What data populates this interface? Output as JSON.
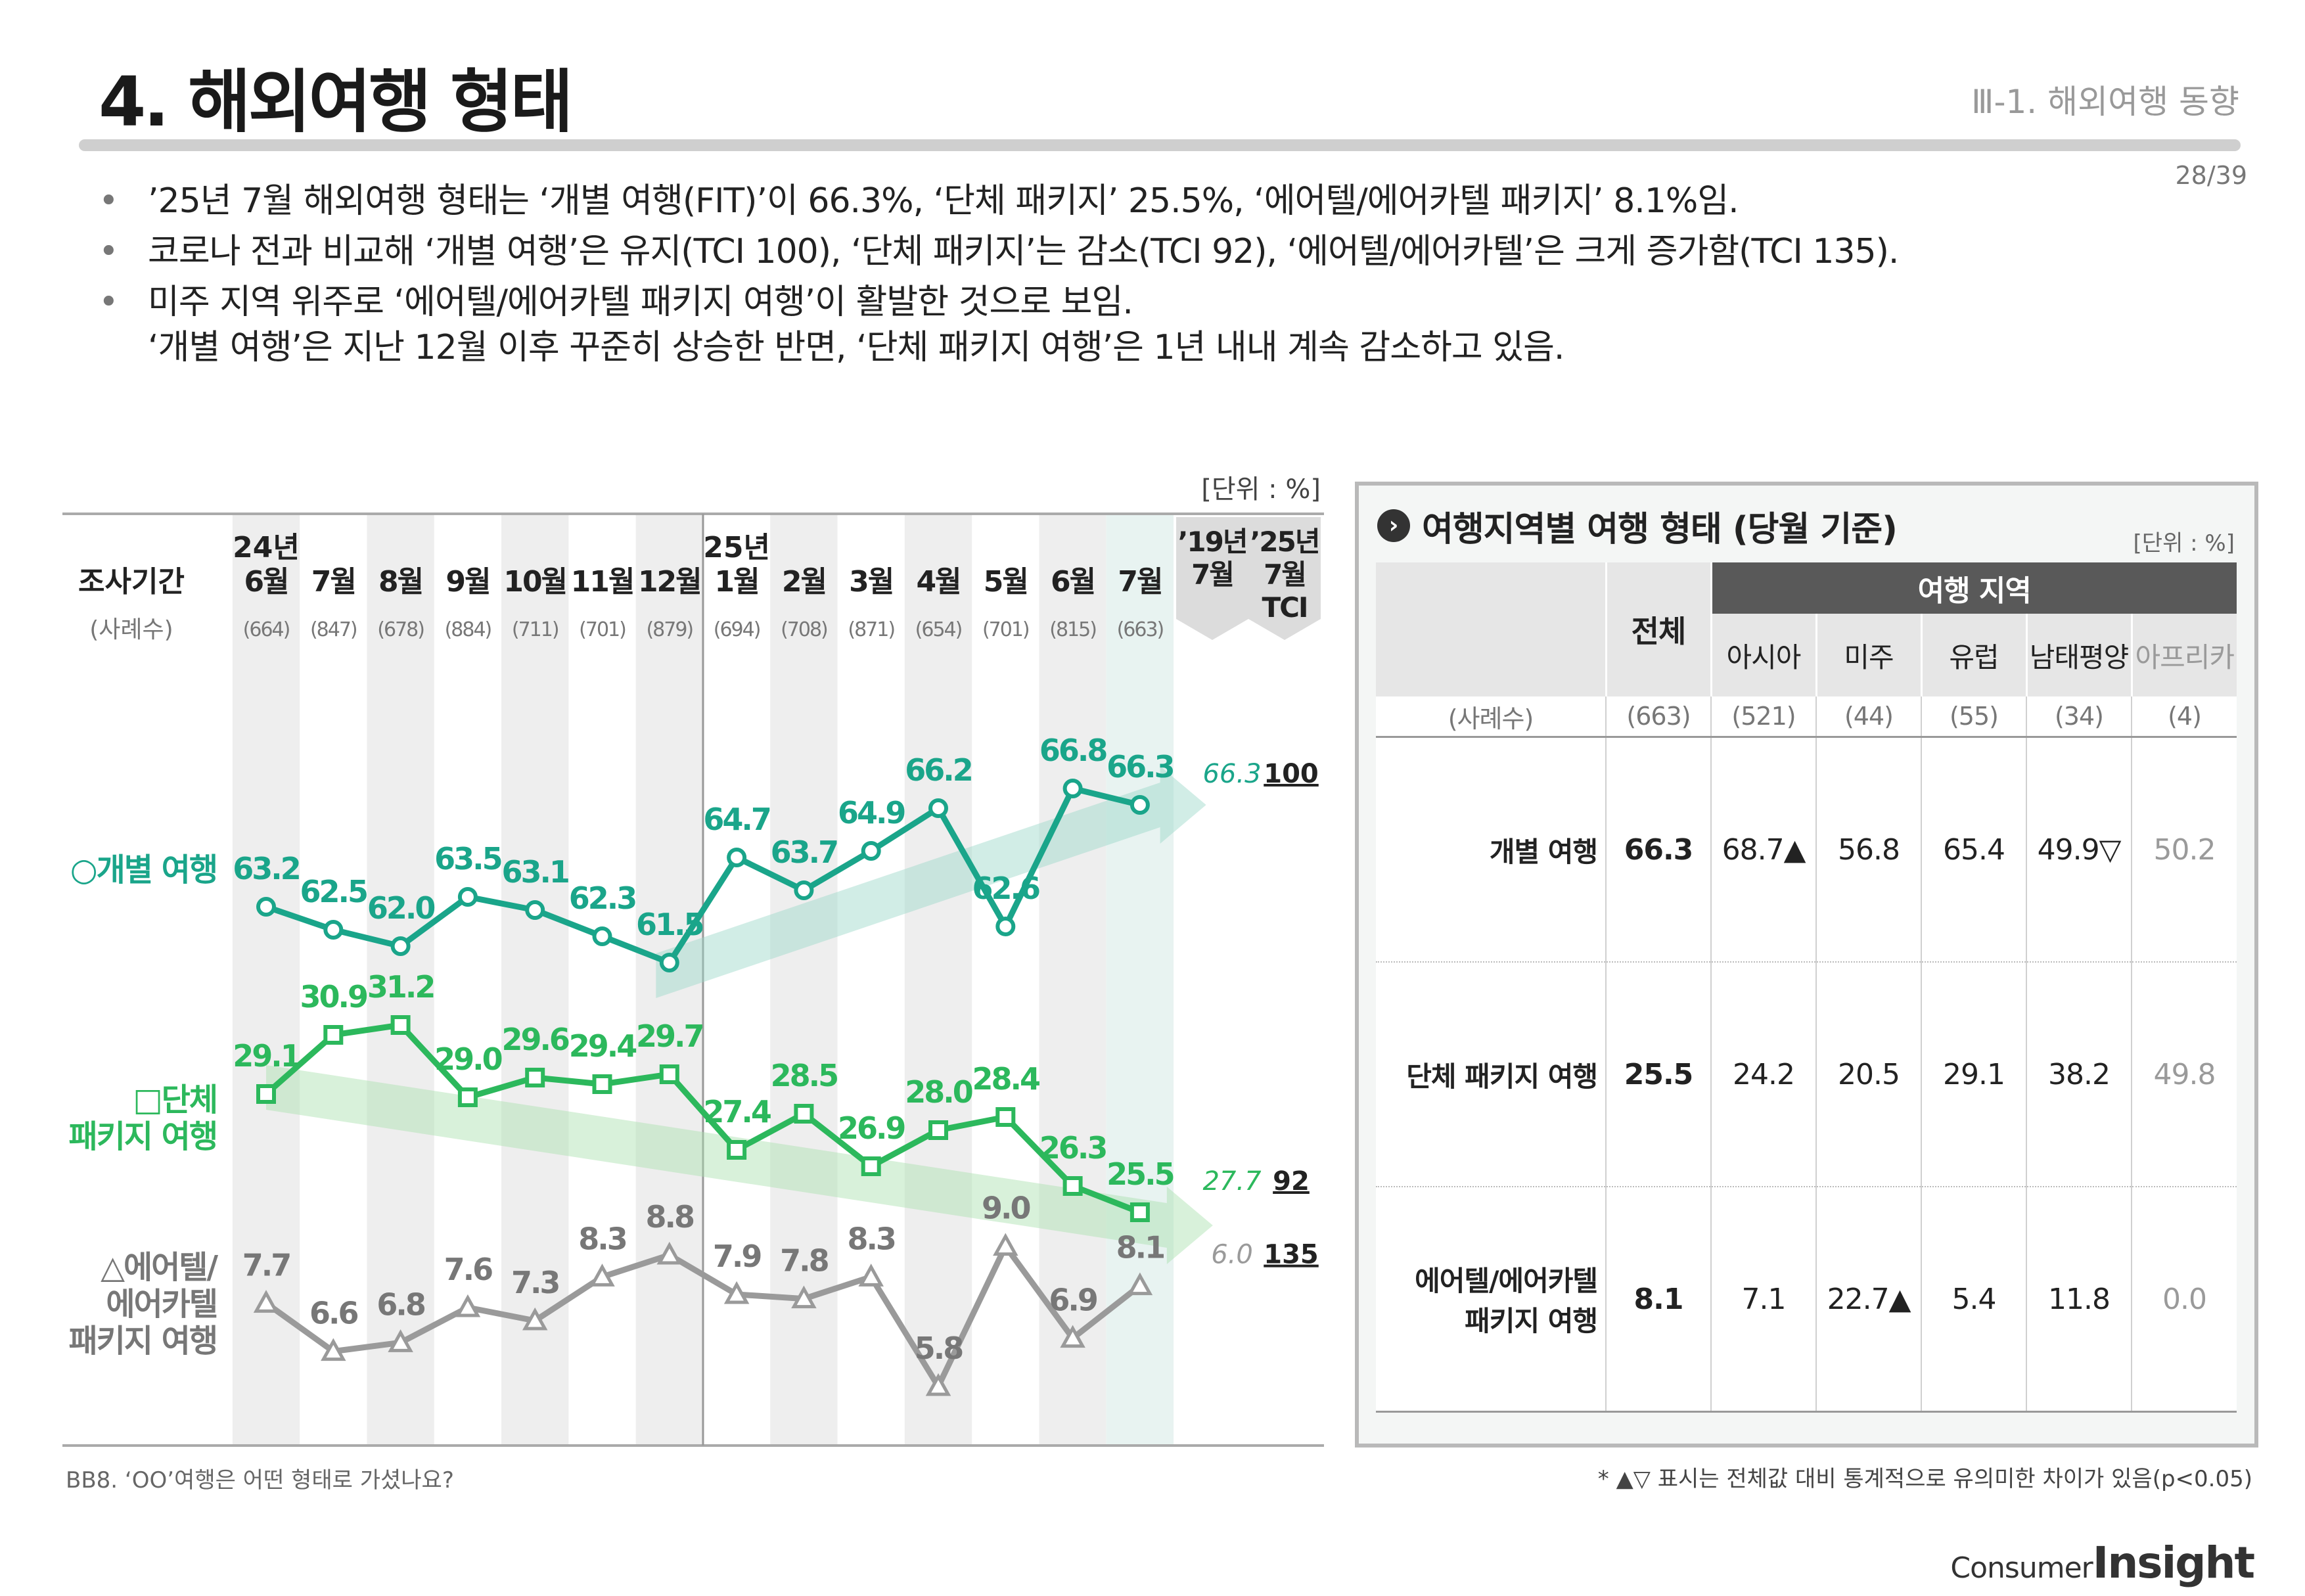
{
  "header": {
    "title": "4. 해외여행 형태",
    "section": "Ⅲ-1. 해외여행 동향",
    "page": "28/39"
  },
  "bullets": [
    "’25년 7월 해외여행 형태는 ‘개별 여행(FIT)’이 66.3%, ‘단체 패키지’ 25.5%, ‘에어텔/에어카텔 패키지’ 8.1%임.",
    "코로나 전과 비교해 ‘개별 여행’은 유지(TCI 100), ‘단체 패키지’는 감소(TCI 92), ‘에어텔/에어카텔’은 크게 증가함(TCI 135).",
    "미주 지역 위주로 ‘에어텔/에어카텔 패키지 여행’이 활발한 것으로 보임.",
    "‘개별 여행’은 지난 12월 이후 꾸준히 상승한 반면, ‘단체 패키지 여행’은 1년 내내 계속 감소하고 있음."
  ],
  "chart_data": {
    "type": "line",
    "unit_label": "[단위 : %]",
    "row_header": "조사기간",
    "n_header": "(사례수)",
    "year_labels": [
      {
        "index": 0,
        "label": "24년"
      },
      {
        "index": 7,
        "label": "25년"
      }
    ],
    "categories": [
      "6월",
      "7월",
      "8월",
      "9월",
      "10월",
      "11월",
      "12월",
      "1월",
      "2월",
      "3월",
      "4월",
      "5월",
      "6월",
      "7월"
    ],
    "n": [
      "(664)",
      "(847)",
      "(678)",
      "(884)",
      "(711)",
      "(701)",
      "(879)",
      "(694)",
      "(708)",
      "(871)",
      "(654)",
      "(701)",
      "(815)",
      "(663)"
    ],
    "compare_headers": {
      "pre": [
        "’19년",
        "7월"
      ],
      "tci": [
        "’25년",
        "7월",
        "TCI"
      ]
    },
    "series": [
      {
        "name": "○개별 여행",
        "marker": "circle",
        "color": "#1aa58a",
        "values": [
          63.2,
          62.5,
          62.0,
          63.5,
          63.1,
          62.3,
          61.5,
          64.7,
          63.7,
          64.9,
          66.2,
          62.6,
          66.8,
          66.3
        ],
        "pre": "66.3",
        "tci": "100"
      },
      {
        "name": "□단체 패키지 여행",
        "marker": "square",
        "color": "#2cb85c",
        "values": [
          29.1,
          30.9,
          31.2,
          29.0,
          29.6,
          29.4,
          29.7,
          27.4,
          28.5,
          26.9,
          28.0,
          28.4,
          26.3,
          25.5
        ],
        "pre": "27.7",
        "tci": "92"
      },
      {
        "name": "△에어텔/에어카텔 패키지 여행",
        "marker": "triangle",
        "color": "#9a9a9a",
        "values": [
          7.7,
          6.6,
          6.8,
          7.6,
          7.3,
          8.3,
          8.8,
          7.9,
          7.8,
          8.3,
          5.8,
          9.0,
          6.9,
          8.1
        ],
        "pre": "6.0",
        "tci": "135"
      }
    ]
  },
  "regional": {
    "title": "여행지역별 여행 형태 (당월 기준)",
    "unit": "[단위 : %]",
    "total_label": "전체",
    "region_group": "여행 지역",
    "regions": [
      "아시아",
      "미주",
      "유럽",
      "남태평양",
      "아프리카"
    ],
    "n_label": "(사례수)",
    "n": [
      "(663)",
      "(521)",
      "(44)",
      "(55)",
      "(34)",
      "(4)"
    ],
    "rows": [
      {
        "label": "개별 여행",
        "cells": [
          "66.3",
          "68.7▲",
          "56.8",
          "65.4",
          "49.9▽",
          "50.2"
        ]
      },
      {
        "label": "단체 패키지 여행",
        "cells": [
          "25.5",
          "24.2",
          "20.5",
          "29.1",
          "38.2",
          "49.8"
        ]
      },
      {
        "label": "에어텔/에어카텔\n패키지 여행",
        "cells": [
          "8.1",
          "7.1",
          "22.7▲",
          "5.4",
          "11.8",
          "0.0"
        ]
      }
    ]
  },
  "footer": {
    "question": "BB8. ‘OO’여행은 어떤 형태로 가셨나요?",
    "note": "* ▲▽ 표시는 전체값 대비 통계적으로 유의미한 차이가 있음(p<0.05)"
  },
  "logo": {
    "line1": "Consumer",
    "line2": "Insight"
  },
  "colors": {
    "fit": "#1aa58a",
    "group": "#2cb85c",
    "airtel": "#9a9a9a",
    "band": "#eeeeee",
    "header_dark": "#595959",
    "header_light": "#e6e6e6"
  }
}
